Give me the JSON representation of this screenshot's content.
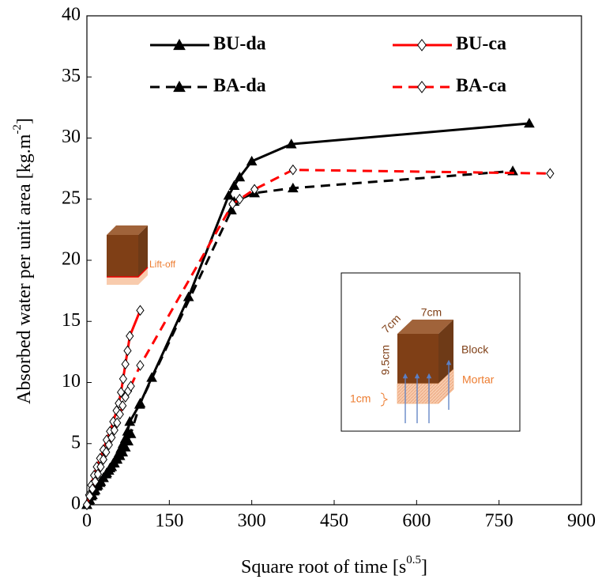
{
  "chart_data": {
    "type": "line",
    "xlabel": {
      "text": "Square root of time [s",
      "superscript": "0.5",
      "suffix": "]"
    },
    "ylabel": {
      "text": "Absorbed water per unit area [kg.m",
      "superscript": "-2",
      "suffix": "]"
    },
    "xlim": [
      0,
      900
    ],
    "xticks": [
      0,
      150,
      300,
      450,
      600,
      750,
      900
    ],
    "ylim": [
      0,
      40
    ],
    "yticks": [
      0,
      5,
      10,
      15,
      20,
      25,
      30,
      35,
      40
    ],
    "grid": false,
    "series": [
      {
        "name": "BU-da",
        "color": "#000000",
        "marker": "triangle",
        "dashed": false,
        "x": [
          0,
          4,
          8,
          13,
          18,
          24,
          30,
          36,
          42,
          48,
          54,
          58,
          62,
          66,
          70,
          74,
          78,
          96,
          118,
          185,
          258,
          268,
          278,
          300,
          372,
          805
        ],
        "values": [
          0,
          0.3,
          0.7,
          1.1,
          1.5,
          1.8,
          2.2,
          2.6,
          3.0,
          3.4,
          3.8,
          4.2,
          4.6,
          5.0,
          5.4,
          6.0,
          6.8,
          8.2,
          10.4,
          17.0,
          25.3,
          26.1,
          26.8,
          28.1,
          29.5,
          31.2
        ]
      },
      {
        "name": "BU-ca",
        "color": "#ff0000",
        "marker": "diamond",
        "dashed": false,
        "x": [
          0,
          4,
          8,
          13,
          18,
          24,
          30,
          36,
          42,
          48,
          54,
          58,
          62,
          66,
          70,
          74,
          78,
          97
        ],
        "values": [
          0,
          0.8,
          1.6,
          2.4,
          3.1,
          3.8,
          4.5,
          5.3,
          6.0,
          6.8,
          7.7,
          8.3,
          9.2,
          10.3,
          11.5,
          12.6,
          13.8,
          15.9
        ]
      },
      {
        "name": "BA-da",
        "color": "#000000",
        "marker": "triangle",
        "dashed": true,
        "x": [
          0,
          5,
          10,
          15,
          20,
          25,
          30,
          35,
          40,
          45,
          50,
          55,
          60,
          65,
          70,
          75,
          80,
          97,
          263,
          268,
          305,
          375,
          775
        ],
        "values": [
          0,
          0.4,
          0.8,
          1.2,
          1.6,
          1.9,
          2.2,
          2.5,
          2.8,
          3.1,
          3.4,
          3.7,
          4.0,
          4.3,
          4.7,
          5.2,
          5.8,
          8.3,
          24.1,
          24.8,
          25.5,
          25.9,
          27.3
        ]
      },
      {
        "name": "BA-ca",
        "color": "#ff0000",
        "marker": "diamond",
        "dashed": true,
        "x": [
          0,
          5,
          10,
          15,
          20,
          25,
          30,
          35,
          40,
          45,
          50,
          55,
          60,
          65,
          70,
          75,
          80,
          97,
          265,
          278,
          305,
          375,
          843
        ],
        "values": [
          0,
          0.7,
          1.3,
          1.9,
          2.5,
          3.1,
          3.7,
          4.3,
          4.9,
          5.5,
          6.1,
          6.7,
          7.4,
          8.1,
          8.8,
          9.3,
          9.7,
          11.4,
          24.6,
          25.0,
          25.8,
          27.4,
          27.1
        ]
      }
    ],
    "annotations": {
      "lift_off": "Lift-off",
      "width": "7cm",
      "depth": "7cm",
      "height": "9.5cm",
      "block": "Block",
      "mortar": "Mortar",
      "mortar_thickness": "1cm"
    }
  }
}
